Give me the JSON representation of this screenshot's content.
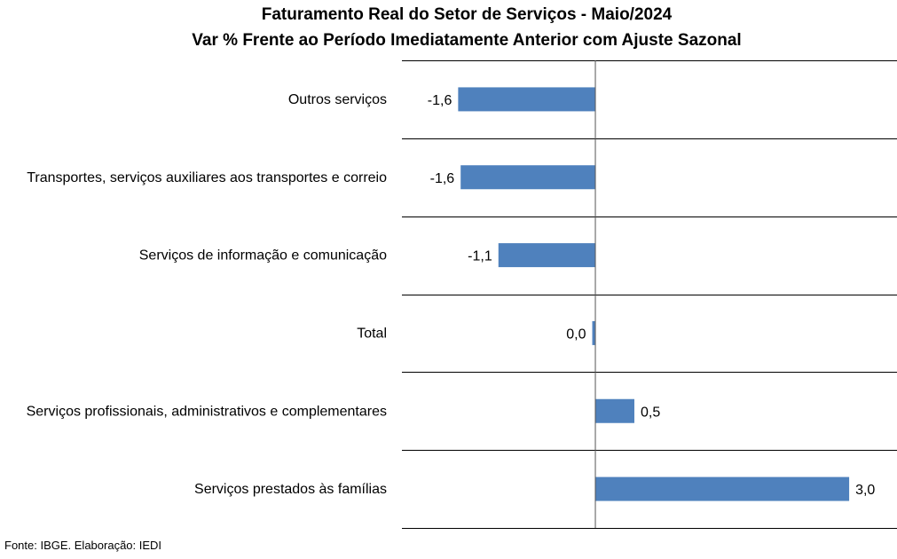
{
  "chart_data": {
    "type": "bar",
    "orientation": "horizontal",
    "title": "Faturamento Real do Setor de Serviços - Maio/2024",
    "subtitle": "Var % Frente ao Período Imediatamente Anterior com Ajuste Sazonal",
    "categories": [
      "Outros serviços",
      "Transportes, serviços auxiliares aos transportes e correio",
      "Serviços de informação e comunicação",
      "Total",
      "Serviços profissionais, administrativos e complementares",
      "Serviços prestados às famílias"
    ],
    "values": [
      -1.63,
      -1.6,
      -1.15,
      -0.03,
      0.47,
      3.03
    ],
    "value_labels": [
      "-1,6",
      "-1,6",
      "-1,1",
      "0,0",
      "0,5",
      "3,0"
    ],
    "xlim": [
      -2.3,
      3.6
    ],
    "bar_color": "#4F81BD",
    "grid": true,
    "legend": "none"
  },
  "footer": {
    "source": "Fonte: IBGE. Elaboração: IEDI"
  }
}
